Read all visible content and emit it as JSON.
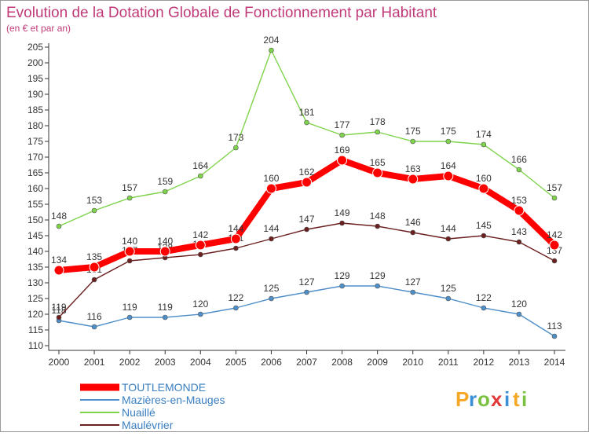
{
  "chart_data": {
    "type": "line",
    "title": "Evolution de la Dotation Globale de Fonctionnement par Habitant",
    "subtitle": "(en € et par an)",
    "xlabel": "",
    "ylabel": "",
    "ylim": [
      110,
      205
    ],
    "ytick_step": 5,
    "grid": false,
    "categories": [
      "2000",
      "2001",
      "2002",
      "2003",
      "2004",
      "2005",
      "2006",
      "2007",
      "2008",
      "2009",
      "2010",
      "2011",
      "2012",
      "2013",
      "2014"
    ],
    "series": [
      {
        "name": "TOUTLEMONDE",
        "color": "#ff0000",
        "highlight": true,
        "values": [
          134,
          135,
          140,
          140,
          142,
          144,
          160,
          162,
          169,
          165,
          163,
          164,
          160,
          153,
          142
        ]
      },
      {
        "name": "Mazières-en-Mauges",
        "color": "#4f8fc9",
        "values": [
          118,
          116,
          119,
          119,
          120,
          122,
          125,
          127,
          129,
          129,
          127,
          125,
          122,
          120,
          113
        ]
      },
      {
        "name": "Nuaillé",
        "color": "#7fd34c",
        "values": [
          148,
          153,
          157,
          159,
          164,
          173,
          204,
          181,
          177,
          178,
          175,
          175,
          174,
          166,
          157
        ]
      },
      {
        "name": "Maulévrier",
        "color": "#6b1f1f",
        "values": [
          119,
          131,
          137,
          138,
          139,
          141,
          144,
          147,
          149,
          148,
          146,
          144,
          145,
          143,
          137
        ]
      }
    ],
    "legend_position": "bottom-left"
  },
  "brand": {
    "name": "Proxiti",
    "letters": [
      "P",
      "r",
      "o",
      "x",
      "i",
      "t",
      "i"
    ]
  }
}
